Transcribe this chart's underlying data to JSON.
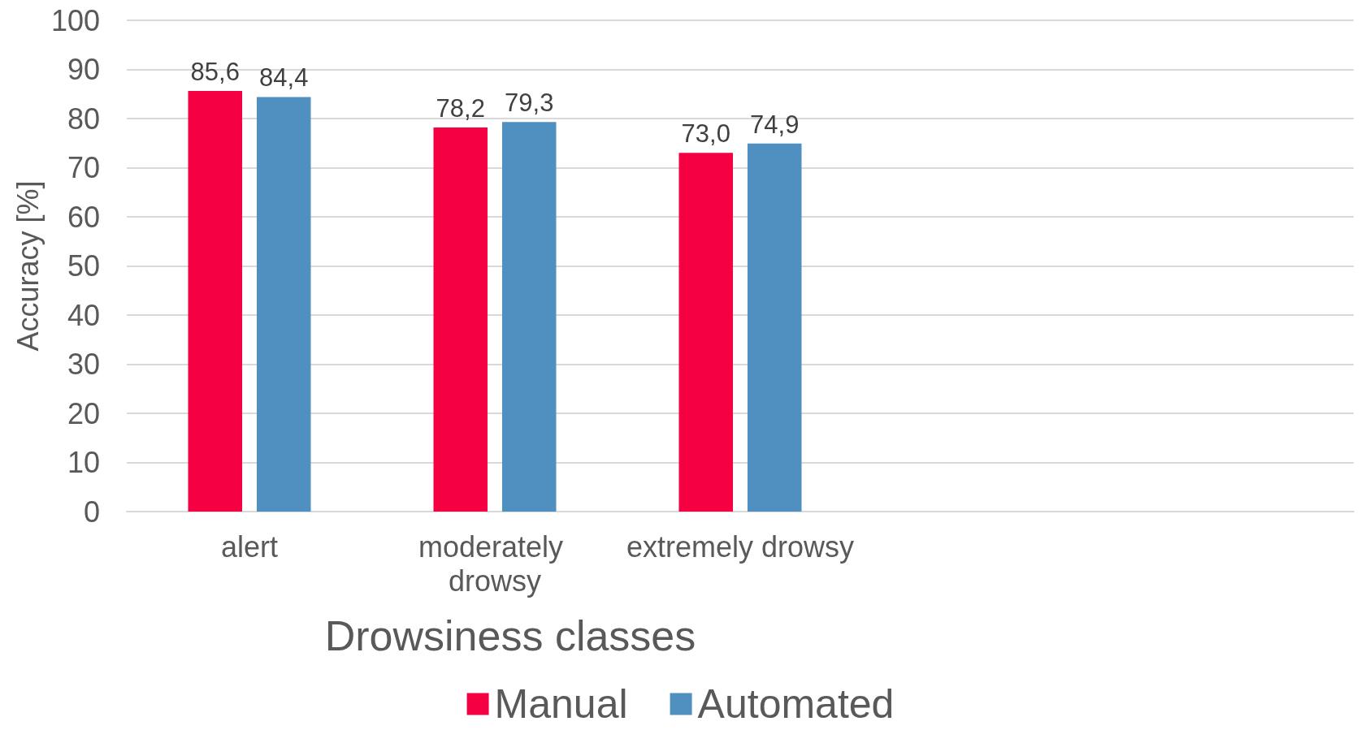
{
  "chart_data": {
    "type": "bar",
    "xlabel": "Drowsiness classes",
    "ylabel": "Accuracy [%]",
    "categories": [
      "alert",
      "moderately drowsy",
      "extremely drowsy",
      null,
      null
    ],
    "series": [
      {
        "name": "Manual",
        "color": "#f40043",
        "values": [
          85.6,
          78.2,
          73.0,
          null,
          null
        ],
        "value_labels": [
          "85,6",
          "78,2",
          "73,0",
          null,
          null
        ]
      },
      {
        "name": "Automated",
        "color": "#5090c1",
        "values": [
          84.4,
          79.3,
          74.9,
          null,
          null
        ],
        "value_labels": [
          "84,4",
          "79,3",
          "74,9",
          null,
          null
        ]
      }
    ],
    "ylim": [
      0,
      100
    ],
    "yticks": [
      0,
      10,
      20,
      30,
      40,
      50,
      60,
      70,
      80,
      90,
      100
    ],
    "grid": "y",
    "legend": "bottom"
  }
}
